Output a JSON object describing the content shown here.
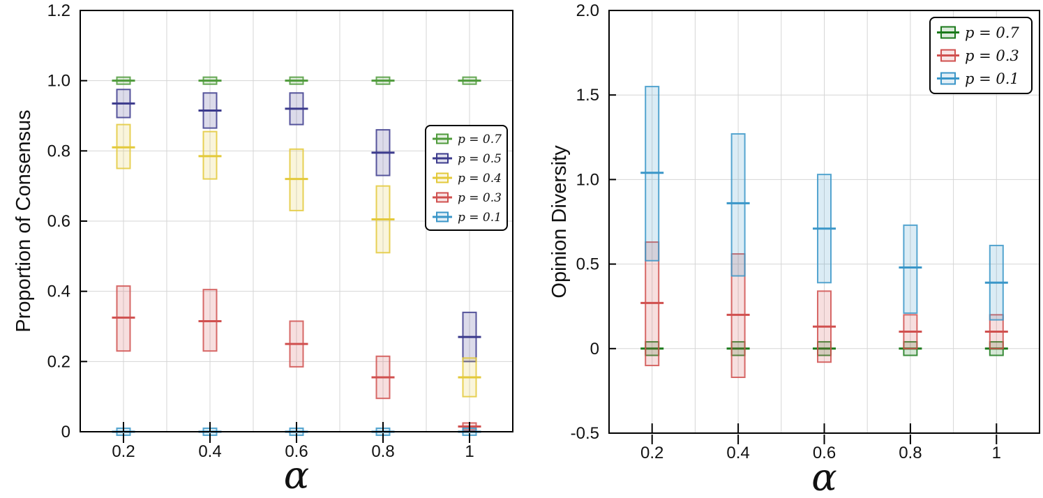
{
  "chart_data": [
    {
      "type": "box-range",
      "xlabel": "α",
      "ylabel": "Proportion of Consensus",
      "x": [
        0.2,
        0.4,
        0.6,
        0.8,
        1
      ],
      "x_tick_labels": [
        "0.2",
        "0.4",
        "0.6",
        "0.8",
        "1"
      ],
      "ylim": [
        0,
        1.2
      ],
      "y_ticks": [
        0,
        0.2,
        0.4,
        0.6,
        0.8,
        1.0,
        1.2
      ],
      "y_tick_labels": [
        "0",
        "0.2",
        "0.4",
        "0.6",
        "0.8",
        "1.0",
        "1.2"
      ],
      "grid": true,
      "legend_position": "center-right",
      "series": [
        {
          "name": "p = 0.7",
          "color": "#4e9a3a",
          "mean": [
            1.0,
            1.0,
            1.0,
            1.0,
            1.0
          ],
          "low": [
            0.99,
            0.99,
            0.99,
            0.99,
            0.99
          ],
          "high": [
            1.01,
            1.01,
            1.01,
            1.01,
            1.01
          ]
        },
        {
          "name": "p = 0.5",
          "color": "#3b3a8c",
          "mean": [
            0.935,
            0.915,
            0.92,
            0.795,
            0.27
          ],
          "low": [
            0.895,
            0.865,
            0.875,
            0.73,
            0.2
          ],
          "high": [
            0.975,
            0.965,
            0.965,
            0.86,
            0.34
          ]
        },
        {
          "name": "p = 0.4",
          "color": "#e3c93a",
          "mean": [
            0.81,
            0.785,
            0.72,
            0.605,
            0.155
          ],
          "low": [
            0.75,
            0.72,
            0.63,
            0.51,
            0.1
          ],
          "high": [
            0.875,
            0.855,
            0.805,
            0.7,
            0.21
          ]
        },
        {
          "name": "p = 0.3",
          "color": "#d0504f",
          "mean": [
            0.325,
            0.315,
            0.25,
            0.155,
            0.015
          ],
          "low": [
            0.23,
            0.23,
            0.185,
            0.095,
            0.005
          ],
          "high": [
            0.415,
            0.405,
            0.315,
            0.215,
            0.025
          ]
        },
        {
          "name": "p = 0.1",
          "color": "#3a96c8",
          "mean": [
            0.0,
            0.0,
            0.0,
            0.0,
            0.0
          ],
          "low": [
            -0.01,
            -0.01,
            -0.01,
            -0.01,
            -0.01
          ],
          "high": [
            0.01,
            0.01,
            0.01,
            0.01,
            0.01
          ]
        }
      ]
    },
    {
      "type": "box-range",
      "xlabel": "α",
      "ylabel": "Opinion Diversity",
      "x": [
        0.2,
        0.4,
        0.6,
        0.8,
        1
      ],
      "x_tick_labels": [
        "0.2",
        "0.4",
        "0.6",
        "0.8",
        "1"
      ],
      "ylim": [
        -0.5,
        2.0
      ],
      "y_ticks": [
        -0.5,
        0,
        0.5,
        1.0,
        1.5,
        2.0
      ],
      "y_tick_labels": [
        "-0.5",
        "0",
        "0.5",
        "1.0",
        "1.5",
        "2.0"
      ],
      "grid": true,
      "legend_position": "top-right",
      "series": [
        {
          "name": "p = 0.7",
          "color": "#1b7a1b",
          "mean": [
            0,
            0,
            0,
            0,
            0
          ],
          "low": [
            -0.04,
            -0.04,
            -0.04,
            -0.04,
            -0.04
          ],
          "high": [
            0.04,
            0.04,
            0.04,
            0.04,
            0.04
          ]
        },
        {
          "name": "p = 0.3",
          "color": "#d0504f",
          "mean": [
            0.27,
            0.2,
            0.13,
            0.1,
            0.1
          ],
          "low": [
            -0.1,
            -0.17,
            -0.08,
            0.0,
            0.0
          ],
          "high": [
            0.63,
            0.56,
            0.34,
            0.2,
            0.2
          ]
        },
        {
          "name": "p = 0.1",
          "color": "#3a96c8",
          "mean": [
            1.04,
            0.86,
            0.71,
            0.48,
            0.39
          ],
          "low": [
            0.52,
            0.43,
            0.39,
            0.21,
            0.17
          ],
          "high": [
            1.55,
            1.27,
            1.03,
            0.73,
            0.61
          ]
        }
      ]
    }
  ]
}
